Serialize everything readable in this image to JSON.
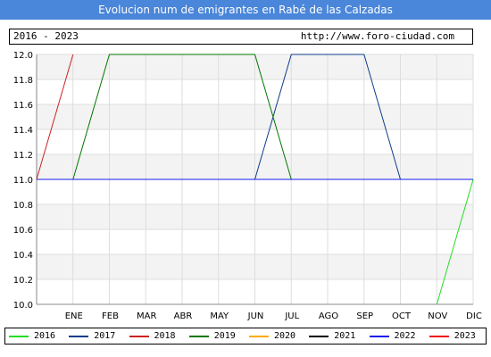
{
  "title": "Evolucion num de emigrantes en Rabé de las Calzadas",
  "period_label": "2016 - 2023",
  "site_label": "http://www.foro-ciudad.com",
  "chart_data": {
    "type": "line",
    "categories": [
      "",
      "ENE",
      "FEB",
      "MAR",
      "ABR",
      "MAY",
      "JUN",
      "JUL",
      "AGO",
      "SEP",
      "OCT",
      "NOV",
      "DIC"
    ],
    "ylim": [
      10.0,
      12.0
    ],
    "yticks": [
      "10.0",
      "10.2",
      "10.4",
      "10.6",
      "10.8",
      "11.0",
      "11.2",
      "11.4",
      "11.6",
      "11.8",
      "12.0"
    ],
    "grid": true,
    "legend_position": "bottom",
    "series": [
      {
        "name": "2016",
        "color": "#22dd22",
        "points": [
          [
            11,
            10.0
          ],
          [
            12,
            11.0
          ]
        ]
      },
      {
        "name": "2017",
        "color": "#0d3c8a",
        "points": [
          [
            0,
            11.0
          ],
          [
            1,
            11.0
          ],
          [
            2,
            11.0
          ],
          [
            3,
            11.0
          ],
          [
            4,
            11.0
          ],
          [
            5,
            11.0
          ],
          [
            6,
            11.0
          ],
          [
            7,
            12.0
          ],
          [
            8,
            12.0
          ],
          [
            9,
            12.0
          ],
          [
            10,
            11.0
          ],
          [
            11,
            11.0
          ],
          [
            12,
            11.0
          ]
        ]
      },
      {
        "name": "2018",
        "color": "#cc2222",
        "points": [
          [
            0,
            11.0
          ],
          [
            1,
            12.0
          ]
        ]
      },
      {
        "name": "2019",
        "color": "#007700",
        "points": [
          [
            1,
            11.0
          ],
          [
            2,
            12.0
          ],
          [
            3,
            12.0
          ],
          [
            4,
            12.0
          ],
          [
            5,
            12.0
          ],
          [
            6,
            12.0
          ],
          [
            7,
            11.0
          ]
        ]
      },
      {
        "name": "2020",
        "color": "#ffaa00",
        "points": []
      },
      {
        "name": "2021",
        "color": "#000000",
        "points": []
      },
      {
        "name": "2022",
        "color": "#1a1aee",
        "points": [
          [
            0,
            11.0
          ],
          [
            1,
            11.0
          ],
          [
            2,
            11.0
          ],
          [
            3,
            11.0
          ],
          [
            4,
            11.0
          ],
          [
            5,
            11.0
          ],
          [
            6,
            11.0
          ],
          [
            7,
            11.0
          ],
          [
            8,
            11.0
          ],
          [
            9,
            11.0
          ],
          [
            10,
            11.0
          ],
          [
            11,
            11.0
          ],
          [
            12,
            11.0
          ]
        ]
      },
      {
        "name": "2023",
        "color": "#ee1111",
        "points": []
      }
    ]
  }
}
